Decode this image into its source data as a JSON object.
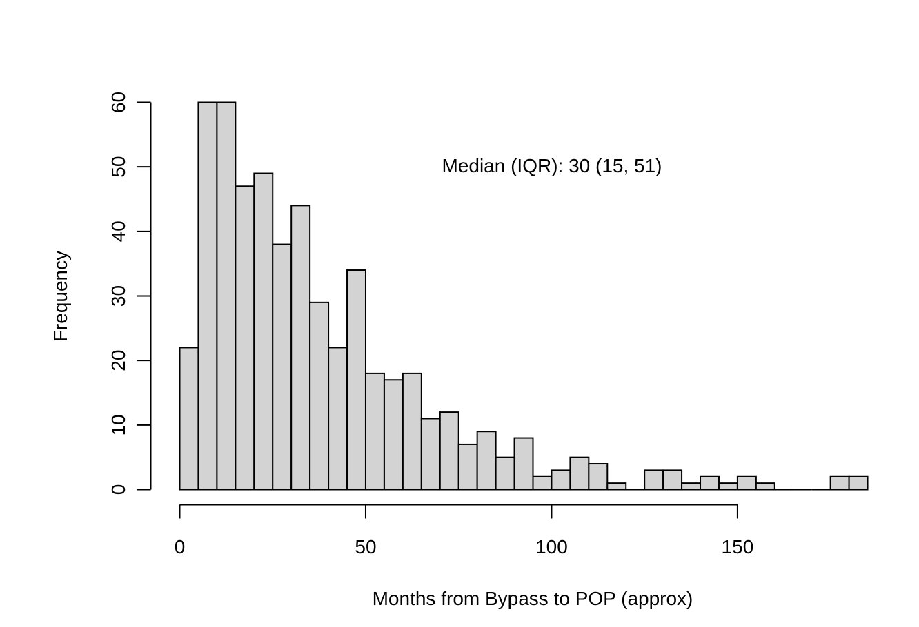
{
  "chart_data": {
    "type": "bar",
    "title": "",
    "xlabel": "Months from Bypass to POP (approx)",
    "ylabel": "Frequency",
    "annotation": "Median (IQR): 30 (15, 51)",
    "bin_width": 5,
    "bin_start": 0,
    "values": [
      22,
      60,
      60,
      47,
      49,
      38,
      44,
      29,
      22,
      34,
      18,
      17,
      18,
      11,
      12,
      7,
      9,
      5,
      8,
      2,
      3,
      5,
      4,
      1,
      0,
      3,
      3,
      1,
      2,
      1,
      2,
      1,
      0,
      0,
      0,
      2,
      2
    ],
    "xlim": [
      0,
      190
    ],
    "ylim": [
      0,
      60
    ],
    "x_ticks": [
      "0",
      "50",
      "100",
      "150"
    ],
    "y_ticks": [
      "0",
      "10",
      "20",
      "30",
      "40",
      "50",
      "60"
    ],
    "bar_fill": "#d3d3d3",
    "bar_stroke": "#000000",
    "grid": false,
    "legend": "none"
  }
}
